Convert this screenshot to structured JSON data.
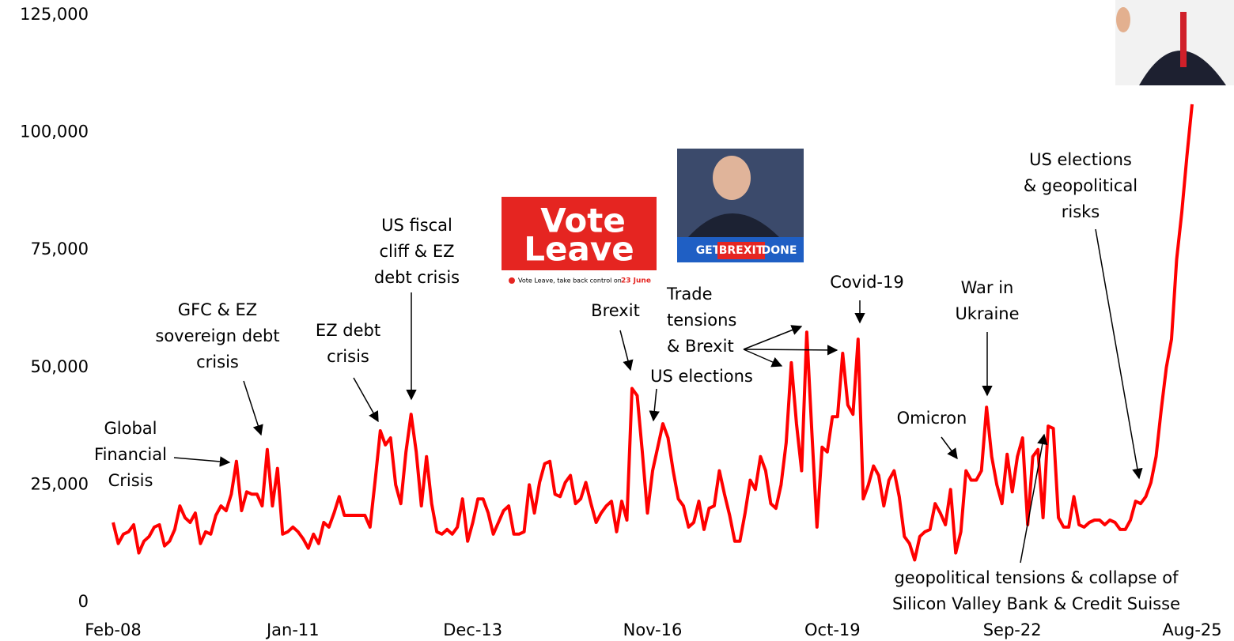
{
  "chart_data": {
    "type": "line",
    "color": "#ff0000",
    "categories": [
      "Feb-08",
      null,
      null,
      null,
      null,
      null,
      null,
      null,
      null,
      null,
      null,
      null,
      null,
      null,
      null,
      null,
      null,
      null,
      null,
      null,
      null,
      null,
      null,
      null,
      null,
      null,
      null,
      null,
      null,
      null,
      null,
      null,
      null,
      null,
      null,
      "Jan-11",
      null,
      null,
      null,
      null,
      null,
      null,
      null,
      null,
      null,
      null,
      null,
      null,
      null,
      null,
      null,
      null,
      null,
      null,
      null,
      null,
      null,
      null,
      null,
      null,
      null,
      null,
      null,
      null,
      null,
      null,
      null,
      null,
      null,
      null,
      "Dec-13",
      null,
      null,
      null,
      null,
      null,
      null,
      null,
      null,
      null,
      null,
      null,
      null,
      null,
      null,
      null,
      null,
      null,
      null,
      null,
      null,
      null,
      null,
      null,
      null,
      null,
      null,
      null,
      null,
      null,
      null,
      null,
      null,
      null,
      null,
      "Nov-16",
      null,
      null,
      null,
      null,
      null,
      null,
      null,
      null,
      null,
      null,
      null,
      null,
      null,
      null,
      null,
      null,
      null,
      null,
      null,
      null,
      null,
      null,
      null,
      null,
      null,
      null,
      null,
      null,
      null,
      null,
      null,
      null,
      null,
      null,
      "Oct-19",
      null,
      null,
      null,
      null,
      null,
      null,
      null,
      null,
      null,
      null,
      null,
      null,
      null,
      null,
      null,
      null,
      null,
      null,
      null,
      null,
      null,
      null,
      null,
      null,
      null,
      null,
      null,
      null,
      null,
      null,
      null,
      null,
      null,
      null,
      "Sep-22",
      null,
      null,
      null,
      null,
      null,
      null,
      null,
      null,
      null,
      null,
      null,
      null,
      null,
      null,
      null,
      null,
      null,
      null,
      null,
      null,
      null,
      null,
      null,
      null,
      null,
      null,
      null,
      null,
      null,
      null,
      null,
      null,
      null,
      null,
      "Aug-25"
    ],
    "values": [
      17000,
      12500,
      14500,
      15000,
      16500,
      10500,
      13000,
      14000,
      16000,
      16500,
      12000,
      13000,
      15500,
      20500,
      18000,
      17000,
      19000,
      12500,
      15000,
      14500,
      18500,
      20500,
      19500,
      23000,
      30000,
      19500,
      23500,
      23000,
      23000,
      20500,
      32500,
      20500,
      28500,
      14500,
      15000,
      16000,
      15000,
      13500,
      11500,
      14500,
      12500,
      17000,
      16000,
      19000,
      22500,
      18500,
      18500,
      18500,
      18500,
      18500,
      16000,
      26000,
      36500,
      33500,
      35000,
      25000,
      21000,
      32000,
      40000,
      32000,
      20500,
      31000,
      21000,
      15000,
      14500,
      15500,
      14500,
      16000,
      22000,
      13000,
      17000,
      22000,
      22000,
      19000,
      14500,
      17000,
      19500,
      20500,
      14500,
      14500,
      15000,
      25000,
      19000,
      25500,
      29500,
      30000,
      23000,
      22500,
      25500,
      27000,
      21000,
      22000,
      25500,
      21000,
      17000,
      19000,
      20500,
      21500,
      15000,
      21500,
      17500,
      45500,
      44000,
      32000,
      19000,
      28000,
      33000,
      38000,
      35000,
      28000,
      22000,
      20500,
      16000,
      17000,
      21500,
      15500,
      20000,
      20500,
      28000,
      23000,
      18500,
      13000,
      13000,
      19000,
      26000,
      24000,
      31000,
      28000,
      21000,
      20000,
      25000,
      34000,
      51000,
      38000,
      28000,
      57500,
      36000,
      16000,
      33000,
      32000,
      39500,
      39500,
      53000,
      42000,
      40000,
      56000,
      22000,
      25000,
      29000,
      27000,
      20500,
      26000,
      28000,
      22500,
      14000,
      12500,
      9000,
      14000,
      15000,
      15500,
      21000,
      19000,
      16500,
      24000,
      10500,
      15000,
      28000,
      26000,
      26000,
      28000,
      41500,
      31000,
      25000,
      21000,
      31500,
      23500,
      31000,
      35000,
      16500,
      31000,
      32500,
      18000,
      37500,
      37000,
      18000,
      16000,
      16000,
      22500,
      16500,
      16000,
      17000,
      17500,
      17500,
      16500,
      17500,
      17000,
      15500,
      15500,
      17500,
      21500,
      21000,
      22500,
      25500,
      31000,
      41000,
      50000,
      56000,
      73000,
      83000,
      95000,
      106000
    ],
    "ylim": [
      0,
      125000
    ],
    "yticks": [
      0,
      {
        "value": 25000,
        "label": "25,000"
      },
      {
        "value": 50000,
        "label": "50,000"
      },
      {
        "value": 75000,
        "label": "75,000"
      },
      {
        "value": 100000,
        "label": "100,000"
      },
      {
        "value": 125000,
        "label": "125,000"
      }
    ],
    "annotations": [
      {
        "lines": [
          "Global",
          "Financial",
          "Crisis"
        ]
      },
      {
        "lines": [
          "GFC & EZ",
          "sovereign debt",
          "crisis"
        ]
      },
      {
        "lines": [
          "EZ debt",
          "crisis"
        ]
      },
      {
        "lines": [
          "US fiscal",
          "cliff & EZ",
          "debt crisis"
        ]
      },
      {
        "lines": [
          "Brexit"
        ]
      },
      {
        "lines": [
          "US elections"
        ]
      },
      {
        "lines": [
          "Trade",
          "tensions",
          "& Brexit"
        ]
      },
      {
        "lines": [
          "Covid-19"
        ]
      },
      {
        "lines": [
          "War in",
          "Ukraine"
        ]
      },
      {
        "lines": [
          "Omicron"
        ]
      },
      {
        "lines": [
          "US elections",
          "& geopolitical",
          "risks"
        ]
      },
      {
        "lines": [
          "geopolitical tensions & collapse of",
          "Silicon Valley Bank & Credit Suisse"
        ]
      }
    ],
    "images": {
      "vote_leave": {
        "lines": [
          "Vote",
          "Leave"
        ],
        "caption": "Vote Leave, take back control on",
        "caption_date": "23 June"
      },
      "brexit_banner": {
        "words": [
          "GET",
          "BREXIT",
          "DONE"
        ]
      }
    }
  }
}
